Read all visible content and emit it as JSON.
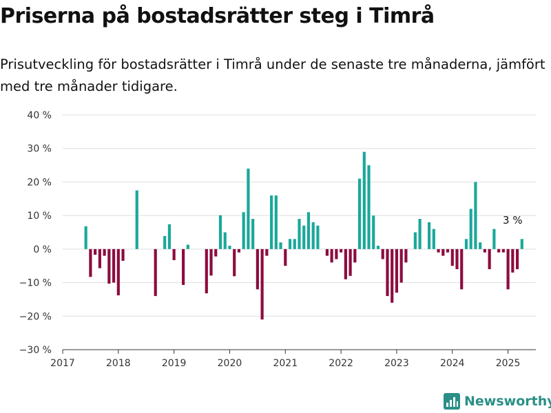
{
  "header": {
    "title": "Priserna på bostadsrätter steg i Timrå",
    "subtitle": "Prisutveckling för bostadsrätter i Timrå under de senaste tre månaderna, jämfört med tre månader tidigare."
  },
  "brand": {
    "name": "Newsworthy",
    "color": "#2a8f86"
  },
  "colors": {
    "positive": "#1aa89a",
    "negative": "#8c0c3f"
  },
  "chart_data": {
    "type": "bar",
    "title": "Priserna på bostadsrätter steg i Timrå",
    "subtitle": "Prisutveckling för bostadsrätter i Timrå under de senaste tre månaderna, jämfört med tre månader tidigare.",
    "xlabel": "",
    "ylabel": "",
    "ylim": [
      -30,
      40
    ],
    "xlim": [
      2017,
      2025.5
    ],
    "y_ticks": [
      -30,
      -20,
      -10,
      0,
      10,
      20,
      30,
      40
    ],
    "y_tick_labels": [
      "−30 %",
      "−20 %",
      "−10 %",
      "0 %",
      "10 %",
      "20 %",
      "30 %",
      "40 %"
    ],
    "x_ticks": [
      2017,
      2018,
      2019,
      2020,
      2021,
      2022,
      2023,
      2024,
      2025
    ],
    "x_tick_labels": [
      "2017",
      "2018",
      "2019",
      "2020",
      "2021",
      "2022",
      "2023",
      "2024",
      "2025"
    ],
    "grid": "horizontal",
    "legend": "none",
    "start": "2017-06",
    "values": [
      6.8,
      -8.3,
      -1.7,
      -5.7,
      -2.0,
      -10.3,
      -10.0,
      -13.8,
      -3.5,
      null,
      null,
      17.5,
      null,
      null,
      null,
      -14.0,
      null,
      3.9,
      7.4,
      -3.3,
      null,
      -10.7,
      1.3,
      null,
      null,
      null,
      -13.2,
      -7.9,
      -2.2,
      10.1,
      5.0,
      1.0,
      -8.1,
      -1.0,
      11.0,
      24.0,
      9.0,
      -12.0,
      -21.0,
      -2.0,
      16.0,
      16.0,
      2.0,
      -5.0,
      3.0,
      3.0,
      9.0,
      7.0,
      11.0,
      8.0,
      7.0,
      null,
      -2.0,
      -4.0,
      -3.0,
      -1.0,
      -9.0,
      -8.0,
      -4.0,
      21.0,
      29.0,
      25.0,
      10.0,
      1.0,
      -3.0,
      -14.0,
      -16.0,
      -13.0,
      -10.0,
      -4.0,
      null,
      5.0,
      9.0,
      null,
      8.0,
      6.0,
      -1.0,
      -2.0,
      -1.0,
      -5.0,
      -6.0,
      -12.0,
      3.0,
      12.0,
      20.0,
      2.0,
      -1.0,
      -6.0,
      6.0,
      -1.0,
      -1.0,
      -12.0,
      -7.0,
      -6.0,
      3.0
    ],
    "annotations": [
      {
        "text": "3 %",
        "x": "2025-02",
        "y": 3
      }
    ]
  }
}
